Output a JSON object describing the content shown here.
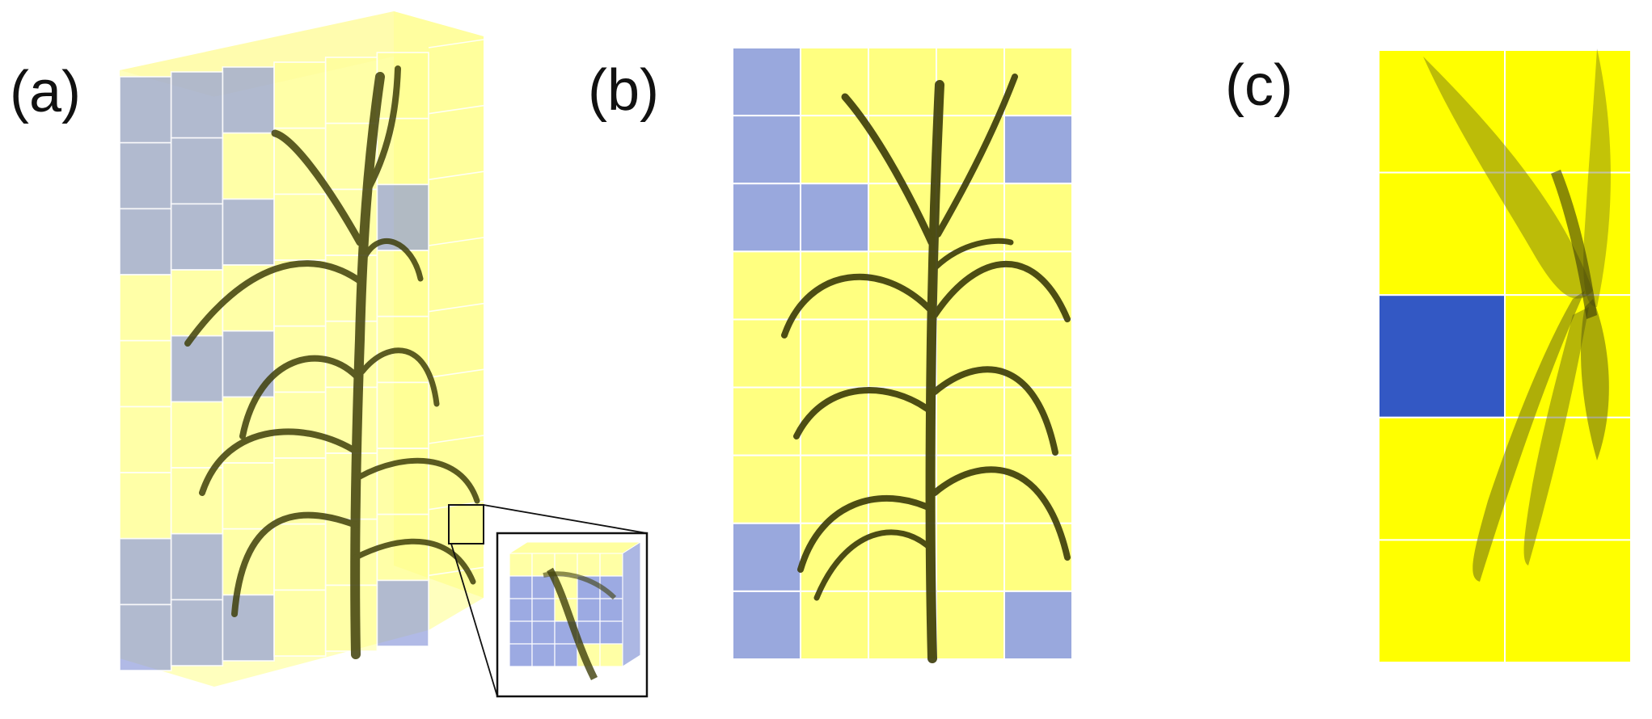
{
  "panels": [
    {
      "id": "a",
      "label": "(a)"
    },
    {
      "id": "b",
      "label": "(b)"
    },
    {
      "id": "c",
      "label": "(c)"
    }
  ],
  "colors": {
    "yellow_light": "#ffff80",
    "yellow_bright": "#ffff00",
    "blue_light": "#99a8dd",
    "blue_deep": "#3358c4",
    "plant": "#4a4a10",
    "grid_line": "#ffffff"
  },
  "panel_b_grid": {
    "cols": 5,
    "rows": 9,
    "cells": [
      [
        "blue",
        "yellow",
        "yellow",
        "yellow",
        "yellow"
      ],
      [
        "blue",
        "yellow",
        "yellow",
        "yellow",
        "blue"
      ],
      [
        "blue",
        "blue",
        "yellow",
        "yellow",
        "yellow"
      ],
      [
        "yellow",
        "yellow",
        "yellow",
        "yellow",
        "yellow"
      ],
      [
        "yellow",
        "yellow",
        "yellow",
        "yellow",
        "yellow"
      ],
      [
        "yellow",
        "yellow",
        "yellow",
        "yellow",
        "yellow"
      ],
      [
        "yellow",
        "yellow",
        "yellow",
        "yellow",
        "yellow"
      ],
      [
        "blue",
        "yellow",
        "yellow",
        "yellow",
        "yellow"
      ],
      [
        "blue",
        "yellow",
        "yellow",
        "yellow",
        "blue"
      ]
    ]
  },
  "panel_c_grid": {
    "cols": 2,
    "rows": 5,
    "cells": [
      [
        "yellow",
        "yellow"
      ],
      [
        "yellow",
        "yellow"
      ],
      [
        "blue",
        "yellow"
      ],
      [
        "yellow",
        "yellow"
      ],
      [
        "yellow",
        "yellow"
      ]
    ]
  }
}
